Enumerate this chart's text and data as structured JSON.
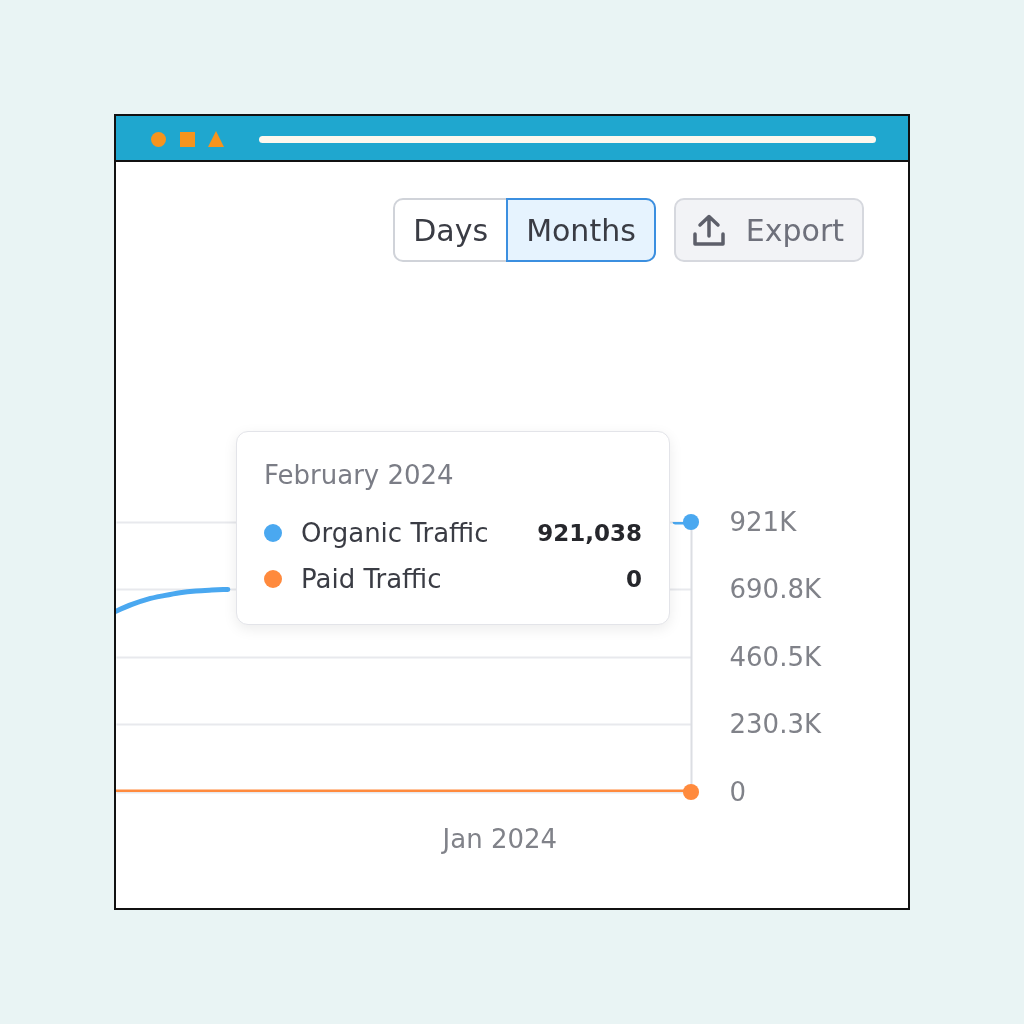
{
  "chart_data": {
    "type": "line",
    "categories": [
      null,
      null,
      null,
      null,
      null,
      null,
      null,
      null,
      null,
      null,
      null,
      null,
      null,
      null,
      null,
      null,
      null,
      null,
      null,
      null,
      null,
      null,
      null,
      null,
      "Jan 2024",
      null,
      null,
      null,
      null,
      null,
      null,
      null,
      null,
      null,
      null,
      null,
      null
    ],
    "series": [
      {
        "name": "Organic Traffic",
        "color": "#4aa8f0",
        "values": [
          617000,
          640000,
          658000,
          670000,
          680000,
          686000,
          689000,
          691000,
          null,
          null,
          null,
          null,
          null,
          null,
          null,
          null,
          null,
          null,
          null,
          null,
          null,
          null,
          null,
          null,
          null,
          null,
          null,
          null,
          null,
          null,
          null,
          null,
          null,
          null,
          null,
          921000,
          921038
        ],
        "value_labels": [
          null,
          null,
          null,
          null,
          null,
          null,
          null,
          null,
          null,
          null,
          null,
          null,
          null,
          null,
          null,
          null,
          null,
          null,
          null,
          null,
          null,
          null,
          null,
          null,
          null,
          null,
          null,
          null,
          null,
          null,
          null,
          null,
          null,
          null,
          null,
          null,
          "921,038"
        ]
      },
      {
        "name": "Paid Traffic",
        "color": "#ff8a3d",
        "values": [
          0,
          0,
          0,
          0,
          0,
          0,
          0,
          0,
          0,
          0,
          0,
          0,
          0,
          0,
          0,
          0,
          0,
          0,
          0,
          0,
          0,
          0,
          0,
          0,
          0,
          0,
          0,
          0,
          0,
          0,
          0,
          0,
          0,
          0,
          0,
          0,
          0
        ]
      }
    ],
    "ylim": [
      0,
      921038
    ],
    "yticks": [
      0,
      {
        "value": 230300,
        "label": "230.3K"
      },
      {
        "value": 460500,
        "label": "460.5K"
      },
      {
        "value": 690800,
        "label": "690.8K"
      },
      {
        "value": 921000,
        "label": "921K"
      }
    ],
    "grid": "y",
    "legend": "top",
    "annotations": [
      "Days",
      "Months",
      "Export",
      "February 2024",
      "0"
    ]
  }
}
